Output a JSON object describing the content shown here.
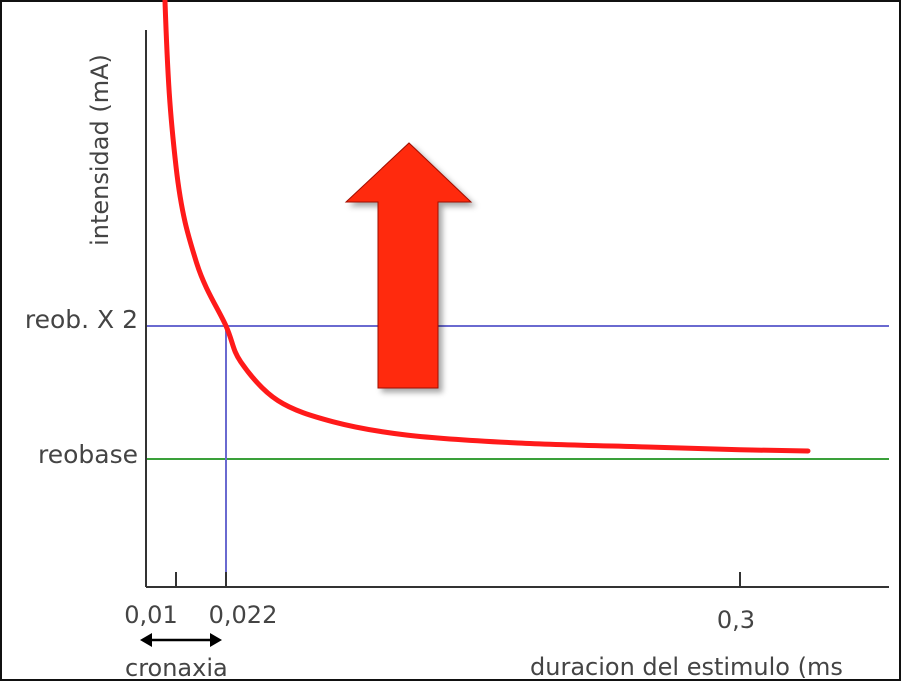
{
  "chart_data": {
    "type": "line",
    "ylabel": "intensidad (mA)",
    "xlabel": "duracion del estimulo (ms",
    "x_ticks": [
      "0,01",
      "0,022",
      "0,3"
    ],
    "y_ref_lines": [
      {
        "label": "reob. X 2",
        "value": 2,
        "color": "#6a6ad0"
      },
      {
        "label": "reobase",
        "value": 1,
        "color": "#3aa03a"
      }
    ],
    "chronaxie": {
      "label": "cronaxia",
      "value": 0.022
    },
    "curve": {
      "color": "#ff1a1a",
      "x": [
        0.003,
        0.006,
        0.01,
        0.015,
        0.022,
        0.03,
        0.05,
        0.08,
        0.12,
        0.18,
        0.25,
        0.3,
        0.34
      ],
      "y": [
        8.33,
        4.67,
        3.2,
        2.47,
        2.0,
        1.73,
        1.44,
        1.28,
        1.18,
        1.12,
        1.09,
        1.07,
        1.06
      ]
    },
    "arrow": {
      "color": "#ff2a10",
      "direction": "up"
    }
  }
}
